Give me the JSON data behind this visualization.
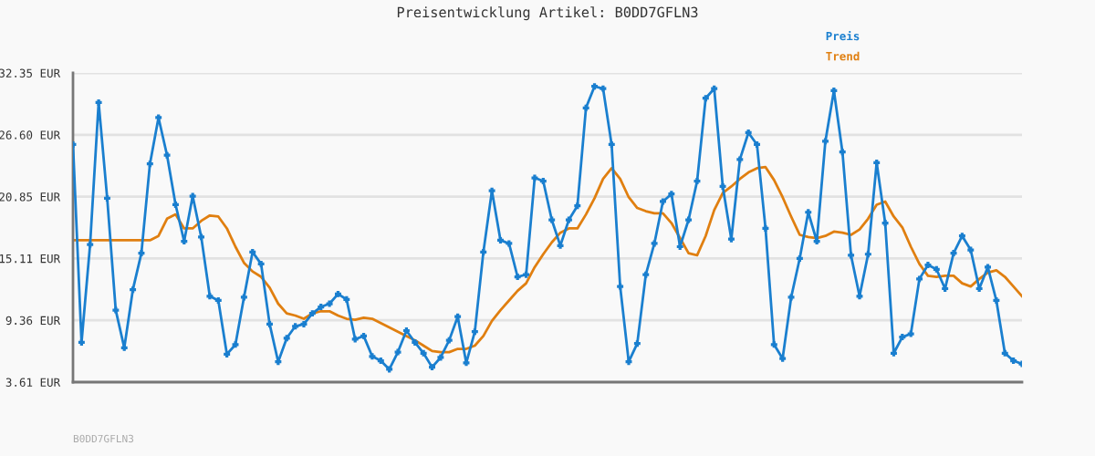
{
  "chart_data": {
    "type": "line",
    "title": "Preisentwicklung Artikel: B0DD7GFLN3",
    "categories": [
      null,
      null,
      null,
      null,
      null,
      null,
      null,
      null,
      null,
      null,
      null,
      null,
      null,
      null,
      null,
      null,
      null,
      null,
      null,
      null,
      null,
      null,
      null,
      null,
      null,
      null,
      null,
      null,
      null,
      null,
      null,
      null,
      null,
      null,
      null,
      null,
      null,
      null,
      null,
      null,
      null,
      null,
      null,
      null,
      null,
      null,
      null,
      null,
      null,
      null,
      null,
      null,
      null,
      null,
      null,
      null,
      null,
      null,
      null,
      null,
      null,
      null,
      null,
      null,
      null,
      null,
      null,
      null,
      null,
      null,
      null,
      null,
      null,
      null,
      null,
      null,
      null,
      null,
      null,
      null,
      null,
      null,
      null,
      null,
      null,
      null,
      null,
      null,
      null,
      null,
      null,
      null,
      null,
      null,
      null,
      null,
      null,
      null,
      null,
      null,
      null,
      null,
      null,
      null,
      null,
      null,
      null,
      null,
      null,
      null,
      null,
      null
    ],
    "series": [
      {
        "name": "Preis",
        "color": "#1a7fcf",
        "marker": "cross",
        "values": [
          25.7,
          7.3,
          16.4,
          29.6,
          20.7,
          10.3,
          6.8,
          12.2,
          15.6,
          23.9,
          28.2,
          24.7,
          20.1,
          16.7,
          20.9,
          17.1,
          11.6,
          11.2,
          6.2,
          7.1,
          11.5,
          15.7,
          14.6,
          9.0,
          5.5,
          7.7,
          8.8,
          9.0,
          10.0,
          10.6,
          10.9,
          11.8,
          11.3,
          7.6,
          7.9,
          6.0,
          5.6,
          4.8,
          6.4,
          8.4,
          7.3,
          6.3,
          5.0,
          5.9,
          7.5,
          9.7,
          5.4,
          8.3,
          15.7,
          21.4,
          16.8,
          16.5,
          13.4,
          13.6,
          22.6,
          22.3,
          18.7,
          16.3,
          18.7,
          20.0,
          29.1,
          31.1,
          30.9,
          25.7,
          12.5,
          5.5,
          7.2,
          13.6,
          16.5,
          20.4,
          21.1,
          16.2,
          18.7,
          22.3,
          30.0,
          30.9,
          21.8,
          16.9,
          24.3,
          26.8,
          25.7,
          17.9,
          7.1,
          5.8,
          11.5,
          15.1,
          19.4,
          16.7,
          26.0,
          30.7,
          25.0,
          15.4,
          11.6,
          15.5,
          24.0,
          18.4,
          6.3,
          7.8,
          8.1,
          13.2,
          14.5,
          14.1,
          12.3,
          15.6,
          17.2,
          15.9,
          12.3,
          14.3,
          11.2,
          6.3,
          5.6,
          5.3
        ]
      },
      {
        "name": "Trend",
        "color": "#e07f10",
        "marker": "none",
        "values": [
          16.8,
          16.8,
          16.8,
          16.8,
          16.8,
          16.8,
          16.8,
          16.8,
          16.8,
          16.8,
          17.2,
          18.8,
          19.2,
          17.9,
          17.9,
          18.6,
          19.1,
          19.0,
          17.9,
          16.2,
          14.7,
          13.9,
          13.4,
          12.4,
          10.9,
          10.0,
          9.8,
          9.5,
          10.0,
          10.2,
          10.2,
          9.8,
          9.5,
          9.4,
          9.6,
          9.5,
          9.1,
          8.7,
          8.3,
          7.9,
          7.5,
          7.0,
          6.5,
          6.4,
          6.4,
          6.7,
          6.7,
          7.0,
          7.9,
          9.3,
          10.3,
          11.2,
          12.1,
          12.8,
          14.3,
          15.5,
          16.6,
          17.5,
          17.9,
          17.9,
          19.2,
          20.7,
          22.5,
          23.5,
          22.5,
          20.8,
          19.8,
          19.5,
          19.3,
          19.3,
          18.4,
          17.0,
          15.6,
          15.4,
          17.2,
          19.6,
          21.2,
          21.8,
          22.5,
          23.1,
          23.5,
          23.6,
          22.4,
          20.8,
          19.0,
          17.3,
          17.1,
          17.0,
          17.2,
          17.6,
          17.5,
          17.3,
          17.8,
          18.8,
          20.1,
          20.4,
          19.0,
          18.0,
          16.2,
          14.6,
          13.5,
          13.4,
          13.5,
          13.5,
          12.8,
          12.5,
          13.2,
          13.8,
          14.0,
          13.4,
          12.5,
          11.6
        ]
      }
    ],
    "ylim": [
      3.61,
      32.35
    ],
    "yticks": [
      {
        "value": 3.61,
        "label": "3.61 EUR"
      },
      {
        "value": 9.36,
        "label": "9.36 EUR"
      },
      {
        "value": 15.11,
        "label": "15.11 EUR"
      },
      {
        "value": 20.85,
        "label": "20.85 EUR"
      },
      {
        "value": 26.6,
        "label": "26.60 EUR"
      },
      {
        "value": 32.35,
        "label": "32.35 EUR"
      }
    ],
    "grid": "y",
    "legend": "top right",
    "tick_labels": "y",
    "line_style": "solid",
    "annotations": [
      "B0DD7GFLN3"
    ]
  }
}
